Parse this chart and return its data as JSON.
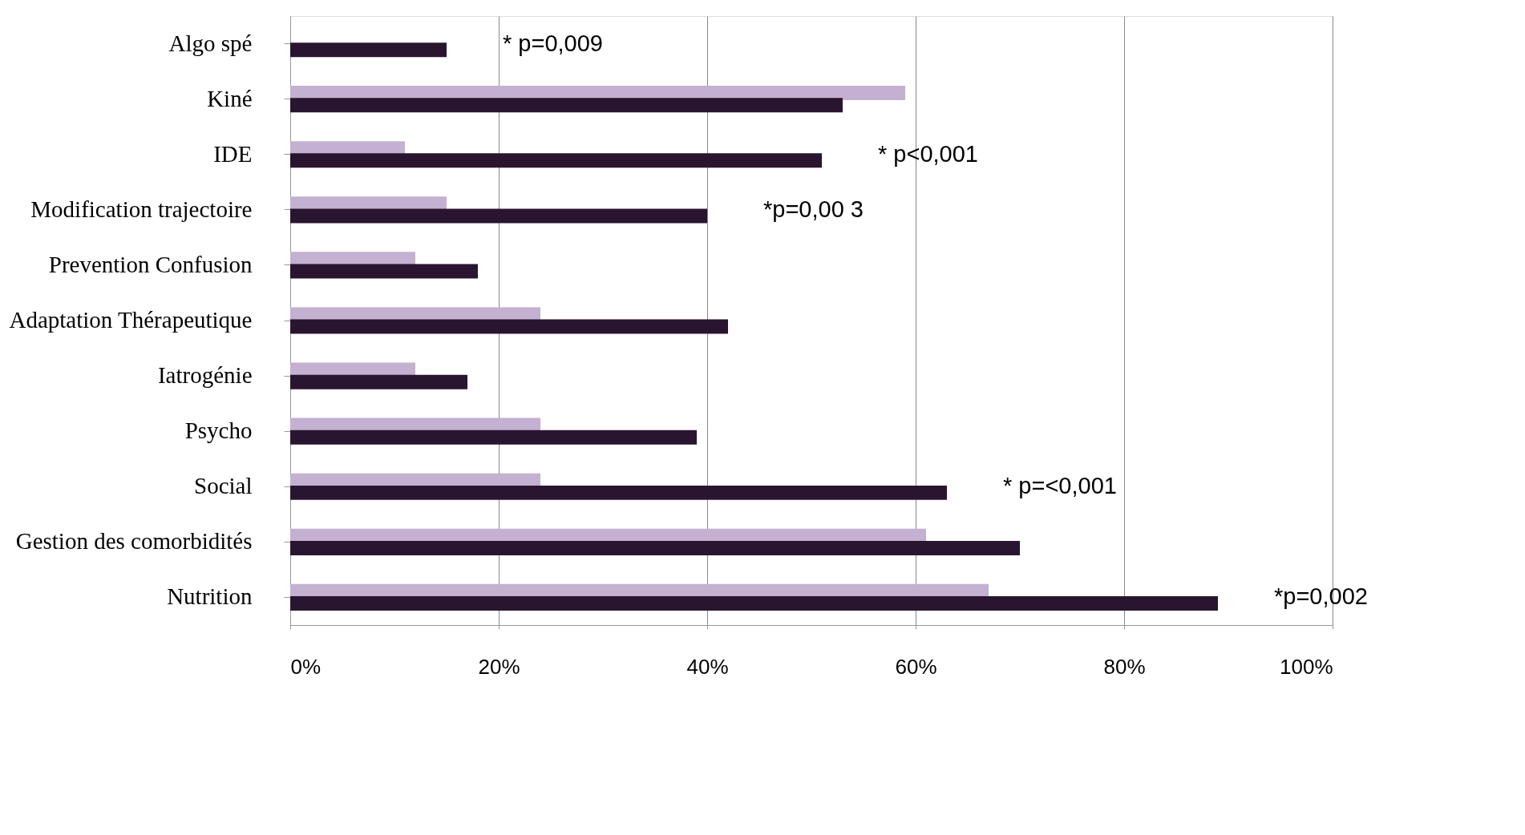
{
  "chart_data": {
    "type": "bar",
    "orientation": "horizontal",
    "categories": [
      "Algo spé",
      "Kiné",
      "IDE",
      "Modification trajectoire",
      "Prevention Confusion",
      "Adaptation Thérapeutique",
      "Iatrogénie",
      "Psycho",
      "Social",
      "Gestion des comorbidités",
      "Nutrition"
    ],
    "series": [
      {
        "color": "#c4b0d0",
        "values": [
          0,
          59,
          11,
          15,
          12,
          24,
          12,
          24,
          24,
          61,
          67
        ]
      },
      {
        "color": "#2a1530",
        "values": [
          15,
          53,
          51,
          40,
          18,
          42,
          17,
          39,
          63,
          70,
          89
        ]
      }
    ],
    "xlim": [
      0,
      100
    ],
    "xticks": [
      {
        "value": 0,
        "label": "0%"
      },
      {
        "value": 20,
        "label": "20%"
      },
      {
        "value": 40,
        "label": "40%"
      },
      {
        "value": 60,
        "label": "60%"
      },
      {
        "value": 80,
        "label": "80%"
      },
      {
        "value": 100,
        "label": "100%"
      }
    ],
    "grid": "x",
    "annotations": [
      {
        "text": "* p=0,009",
        "x": 15,
        "y": "Algo spé"
      },
      {
        "text": "* p<0,001",
        "x": 51,
        "y": "IDE"
      },
      {
        "text": "*p=0,00 3",
        "x": 40,
        "y": "Modification trajectoire"
      },
      {
        "text": "* p=<0,001",
        "x": 63,
        "y": "Social"
      },
      {
        "text": "*p=0,002",
        "x": 89,
        "y": "Nutrition"
      }
    ]
  }
}
